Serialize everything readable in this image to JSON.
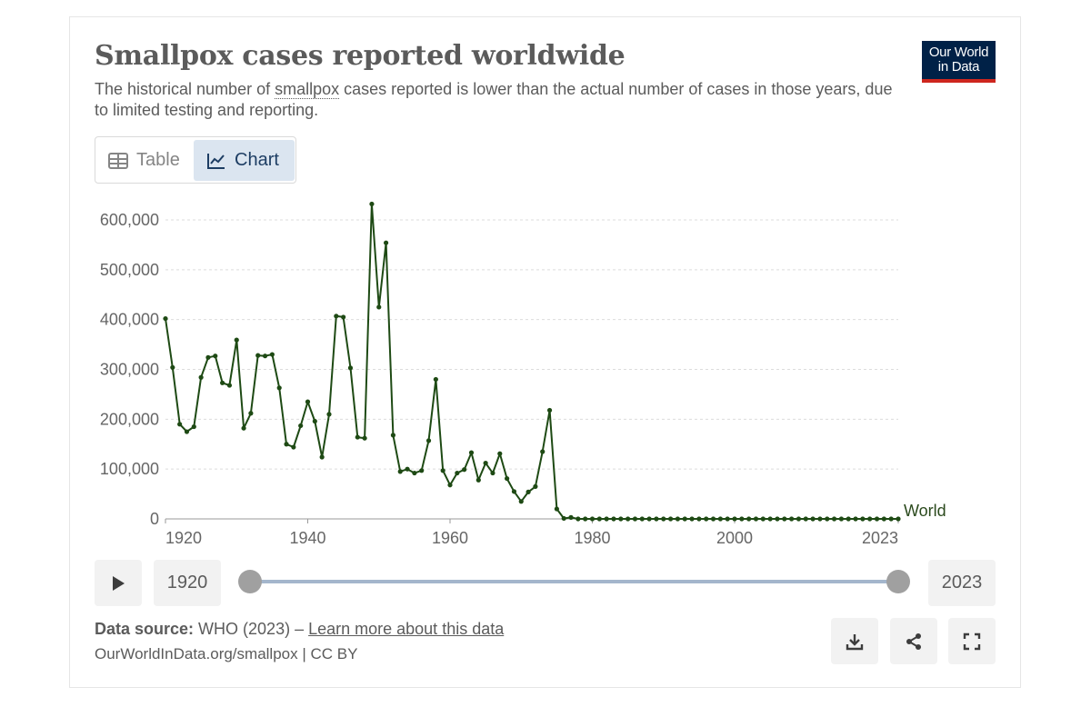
{
  "header": {
    "title": "Smallpox cases reported worldwide",
    "subtitle_before": "The historical number of ",
    "subtitle_term": "smallpox",
    "subtitle_after": " cases reported is lower than the actual number of cases in those years, due to limited testing and reporting.",
    "logo_line1": "Our World",
    "logo_line2": "in Data"
  },
  "tabs": {
    "table_label": "Table",
    "chart_label": "Chart",
    "active": "chart"
  },
  "chart_data": {
    "type": "line",
    "title": "Smallpox cases reported worldwide",
    "xlim": [
      1920,
      2023
    ],
    "ylim": [
      0,
      600000
    ],
    "yticks": [
      0,
      100000,
      200000,
      300000,
      400000,
      500000,
      600000
    ],
    "ytick_labels": [
      "0",
      "100,000",
      "200,000",
      "300,000",
      "400,000",
      "500,000",
      "600,000"
    ],
    "xticks": [
      1920,
      1940,
      1960,
      1980,
      2000,
      2023
    ],
    "xtick_labels": [
      "1920",
      "1940",
      "1960",
      "1980",
      "2000",
      "2023"
    ],
    "grid": "horizontal-dashed",
    "color": "#1e4a14",
    "series": [
      {
        "name": "World",
        "x": [
          1920,
          1921,
          1922,
          1923,
          1924,
          1925,
          1926,
          1927,
          1928,
          1929,
          1930,
          1931,
          1932,
          1933,
          1934,
          1935,
          1936,
          1937,
          1938,
          1939,
          1940,
          1941,
          1942,
          1943,
          1944,
          1945,
          1946,
          1947,
          1948,
          1949,
          1950,
          1951,
          1952,
          1953,
          1954,
          1955,
          1956,
          1957,
          1958,
          1959,
          1960,
          1961,
          1962,
          1963,
          1964,
          1965,
          1966,
          1967,
          1968,
          1969,
          1970,
          1971,
          1972,
          1973,
          1974,
          1975,
          1976,
          1977,
          1978,
          1979,
          1980,
          1981,
          1982,
          1983,
          1984,
          1985,
          1986,
          1987,
          1988,
          1989,
          1990,
          1991,
          1992,
          1993,
          1994,
          1995,
          1996,
          1997,
          1998,
          1999,
          2000,
          2001,
          2002,
          2003,
          2004,
          2005,
          2006,
          2007,
          2008,
          2009,
          2010,
          2011,
          2012,
          2013,
          2014,
          2015,
          2016,
          2017,
          2018,
          2019,
          2020,
          2021,
          2022,
          2023
        ],
        "values": [
          402000,
          304000,
          190000,
          175000,
          185000,
          284000,
          324000,
          327000,
          273000,
          268000,
          359000,
          182000,
          212000,
          328000,
          327000,
          330000,
          263000,
          150000,
          144000,
          187000,
          235000,
          196000,
          124000,
          210000,
          407000,
          405000,
          303000,
          164000,
          162000,
          632000,
          425000,
          554000,
          168000,
          95000,
          100000,
          92000,
          97000,
          157000,
          280000,
          97000,
          68000,
          92000,
          99000,
          133000,
          78000,
          112000,
          92000,
          131000,
          81000,
          55000,
          35000,
          54000,
          65000,
          135000,
          218000,
          20000,
          1000,
          3000,
          0,
          0,
          0,
          0,
          0,
          0,
          0,
          0,
          0,
          0,
          0,
          0,
          0,
          0,
          0,
          0,
          0,
          0,
          0,
          0,
          0,
          0,
          0,
          0,
          0,
          0,
          0,
          0,
          0,
          0,
          0,
          0,
          0,
          0,
          0,
          0,
          0,
          0,
          0,
          0,
          0,
          0,
          0,
          0,
          0,
          0
        ]
      }
    ]
  },
  "timeline": {
    "start_year": "1920",
    "end_year": "2023"
  },
  "footer": {
    "source_label": "Data source:",
    "source_text": " WHO (2023) – ",
    "learn_more": "Learn more about this data",
    "credit": "OurWorldInData.org/smallpox | CC BY"
  }
}
